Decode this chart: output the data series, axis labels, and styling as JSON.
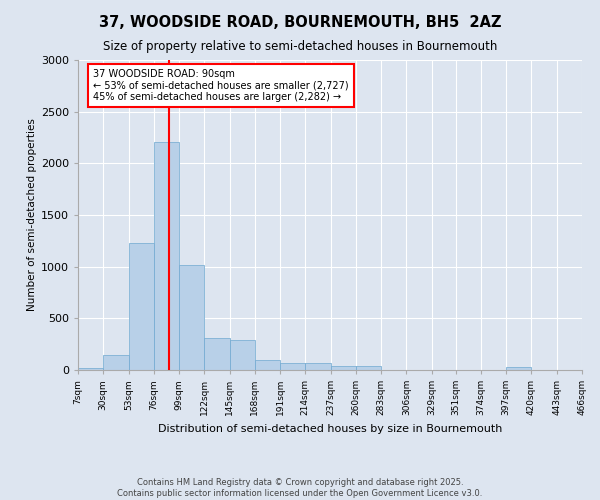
{
  "title": "37, WOODSIDE ROAD, BOURNEMOUTH, BH5  2AZ",
  "subtitle": "Size of property relative to semi-detached houses in Bournemouth",
  "xlabel": "Distribution of semi-detached houses by size in Bournemouth",
  "ylabel": "Number of semi-detached properties",
  "footer_line1": "Contains HM Land Registry data © Crown copyright and database right 2025.",
  "footer_line2": "Contains public sector information licensed under the Open Government Licence v3.0.",
  "annotation_title": "37 WOODSIDE ROAD: 90sqm",
  "annotation_line2": "← 53% of semi-detached houses are smaller (2,727)",
  "annotation_line3": "45% of semi-detached houses are larger (2,282) →",
  "property_size": 90,
  "bin_edges": [
    7,
    30,
    53,
    76,
    99,
    122,
    145,
    168,
    191,
    214,
    237,
    260,
    283,
    306,
    329,
    351,
    374,
    397,
    420,
    443,
    466
  ],
  "bin_labels": [
    "7sqm",
    "30sqm",
    "53sqm",
    "76sqm",
    "99sqm",
    "122sqm",
    "145sqm",
    "168sqm",
    "191sqm",
    "214sqm",
    "237sqm",
    "260sqm",
    "283sqm",
    "306sqm",
    "329sqm",
    "351sqm",
    "374sqm",
    "397sqm",
    "420sqm",
    "443sqm",
    "466sqm"
  ],
  "bar_heights": [
    20,
    150,
    1230,
    2210,
    1020,
    310,
    295,
    100,
    65,
    65,
    40,
    38,
    0,
    0,
    0,
    0,
    0,
    28,
    0,
    0,
    0
  ],
  "bar_color": "#b8d0e8",
  "bar_edgecolor": "#6fa8d0",
  "vline_color": "red",
  "vline_x": 90,
  "annotation_box_edgecolor": "red",
  "annotation_box_facecolor": "white",
  "background_color": "#dde5f0",
  "plot_bg_color": "#dde5f0",
  "ylim": [
    0,
    3000
  ],
  "yticks": [
    0,
    500,
    1000,
    1500,
    2000,
    2500,
    3000
  ]
}
